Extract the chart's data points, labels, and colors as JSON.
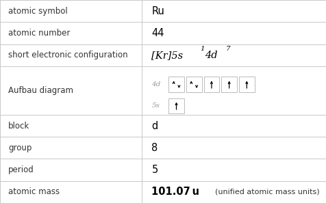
{
  "rows": [
    {
      "label": "atomic symbol",
      "value": "Ru",
      "type": "text"
    },
    {
      "label": "atomic number",
      "value": "44",
      "type": "text"
    },
    {
      "label": "short electronic configuration",
      "value": "",
      "type": "elec_config"
    },
    {
      "label": "Aufbau diagram",
      "value": "",
      "type": "aufbau"
    },
    {
      "label": "block",
      "value": "d",
      "type": "text"
    },
    {
      "label": "group",
      "value": "8",
      "type": "text"
    },
    {
      "label": "period",
      "value": "5",
      "type": "text"
    },
    {
      "label": "atomic mass",
      "value": "",
      "type": "mass"
    }
  ],
  "col_split": 0.435,
  "bg_color": "#ffffff",
  "grid_color": "#c8c8c8",
  "label_color": "#333333",
  "value_color": "#000000",
  "label_fontsize": 8.5,
  "value_fontsize": 10.5,
  "row_heights": [
    1,
    1,
    1,
    2.2,
    1,
    1,
    1,
    1
  ],
  "aufbau_4d": [
    "up_down",
    "up_down",
    "up",
    "up",
    "up"
  ],
  "aufbau_5s": [
    "up"
  ],
  "elec_config_parts": [
    "[Kr]5s",
    "1",
    "4d",
    "7"
  ],
  "mass_bold": "101.07 u",
  "mass_normal": " (unified atomic mass units)"
}
